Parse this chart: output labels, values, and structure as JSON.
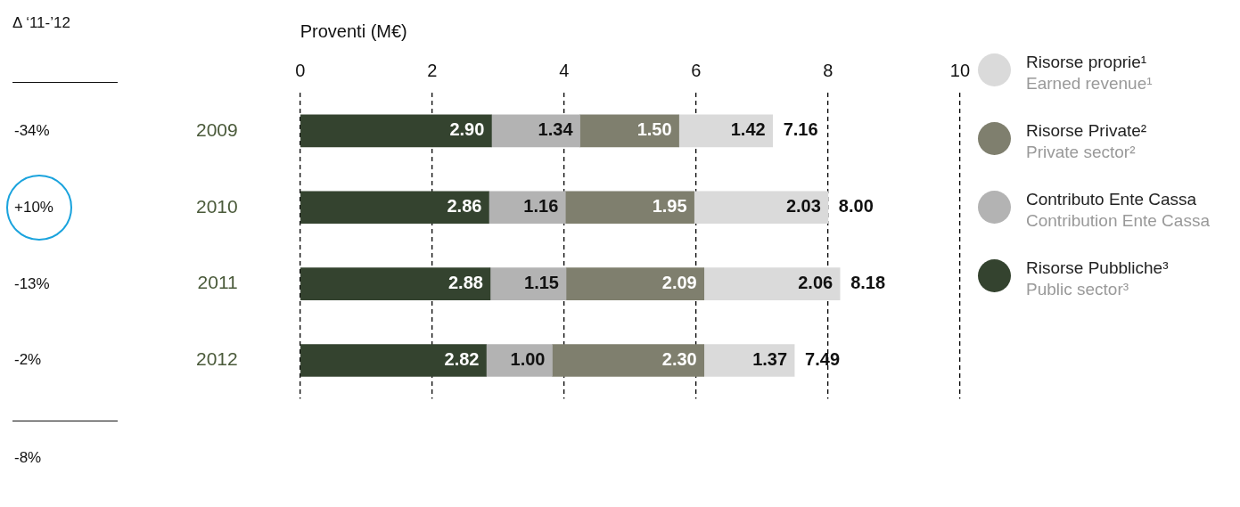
{
  "chart_data": {
    "type": "bar",
    "orientation": "horizontal",
    "stacked": true,
    "xlabel": "Proventi (M€)",
    "categories": [
      "2009",
      "2010",
      "2011",
      "2012"
    ],
    "series": [
      {
        "name": "Risorse Pubbliche³\nPublic sector³",
        "color": "#34432f",
        "values": [
          2.9,
          2.86,
          2.88,
          2.82
        ],
        "value_labels": [
          "2.90",
          "2.86",
          "2.88",
          "2.82"
        ]
      },
      {
        "name": "Contributo Ente Cassa\nContribution Ente Cassa",
        "color": "#b3b3b3",
        "values": [
          1.34,
          1.16,
          1.15,
          1.0
        ],
        "value_labels": [
          "1.34",
          "1.16",
          "1.15",
          "1.00"
        ]
      },
      {
        "name": "Risorse Private²\nPrivate sector²",
        "color": "#7f7f6e",
        "values": [
          1.5,
          1.95,
          2.09,
          2.3
        ],
        "value_labels": [
          "1.50",
          "1.95",
          "2.09",
          "2.30"
        ]
      },
      {
        "name": "Risorse proprie¹\nEarned revenue¹",
        "color": "#dadada",
        "values": [
          1.42,
          2.03,
          2.06,
          1.37
        ],
        "value_labels": [
          "1.42",
          "2.03",
          "2.06",
          "1.37"
        ]
      }
    ],
    "totals": [
      "7.16",
      "8.00",
      "8.18",
      "7.49"
    ],
    "xlim": [
      0,
      10
    ],
    "xticks": [
      0,
      2,
      4,
      6,
      8,
      10
    ],
    "grid": "x",
    "legend": "right",
    "annotations": [
      "Δ ‘11-’12",
      "-34%",
      "+10%",
      "-13%",
      "-2%",
      "-8%"
    ]
  }
}
